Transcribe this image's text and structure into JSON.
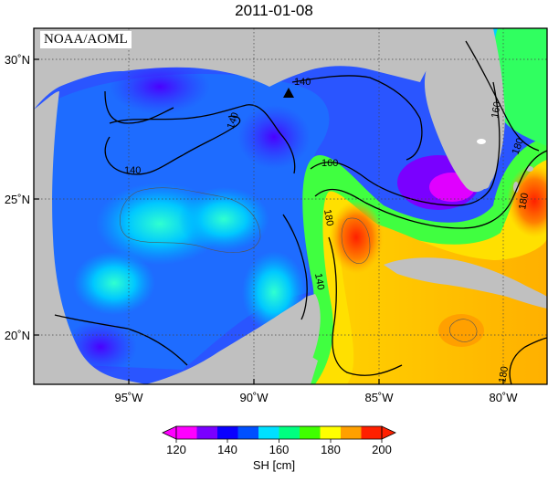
{
  "title": "2011-01-08",
  "credit": "NOAA/AOML",
  "axes": {
    "lon_ticks": [
      "95˚W",
      "90˚W",
      "85˚W",
      "80˚W"
    ],
    "lat_ticks": [
      "30˚N",
      "25˚N",
      "20˚N"
    ]
  },
  "contour_labels": [
    "140",
    "140",
    "140",
    "140",
    "160",
    "160",
    "180",
    "180",
    "180",
    "180"
  ],
  "colorbar": {
    "label": "SH [cm]",
    "ticks": [
      "120",
      "140",
      "160",
      "180",
      "200"
    ],
    "colors": [
      "#ff00ff",
      "#7a00ff",
      "#0a00ff",
      "#0050ff",
      "#00e0ff",
      "#00ff80",
      "#40ff00",
      "#ffff00",
      "#ffa000",
      "#ff2000"
    ]
  },
  "colors": {
    "land": "#c0c0c0",
    "low_sh": "#3040ff",
    "loop_current": "#ffd000"
  },
  "marker": "triangle"
}
